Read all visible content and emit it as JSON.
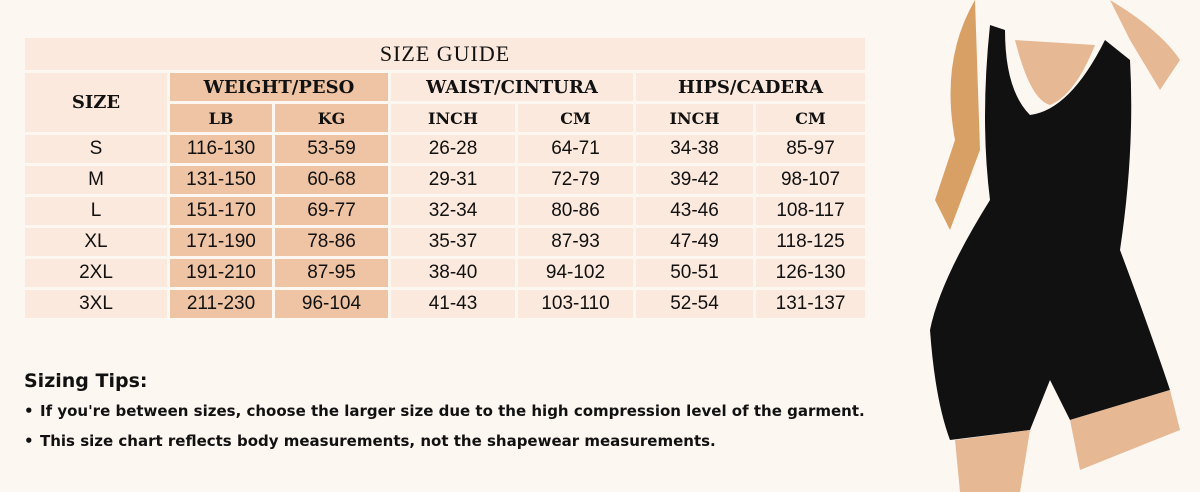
{
  "title": "SIZE GUIDE",
  "headers": {
    "size": "SIZE",
    "weight": "WEIGHT/PESO",
    "waist": "WAIST/CINTURA",
    "hips": "HIPS/CADERA",
    "lb": "LB",
    "kg": "KG",
    "inch": "INCH",
    "cm": "CM"
  },
  "rows": [
    [
      "S",
      "116-130",
      "53-59",
      "26-28",
      "64-71",
      "34-38",
      "85-97"
    ],
    [
      "M",
      "131-150",
      "60-68",
      "29-31",
      "72-79",
      "39-42",
      "98-107"
    ],
    [
      "L",
      "151-170",
      "69-77",
      "32-34",
      "80-86",
      "43-46",
      "108-117"
    ],
    [
      "XL",
      "171-190",
      "78-86",
      "35-37",
      "87-93",
      "47-49",
      "118-125"
    ],
    [
      "2XL",
      "191-210",
      "87-95",
      "38-40",
      "94-102",
      "50-51",
      "126-130"
    ],
    [
      "3XL",
      "211-230",
      "96-104",
      "41-43",
      "103-110",
      "52-54",
      "131-137"
    ]
  ],
  "tips": {
    "heading": "Sizing Tips:",
    "items": [
      "If you're between sizes, choose the larger size due to the high compression level of the garment.",
      "This size chart reflects body measurements, not the shapewear measurements."
    ]
  },
  "colors": {
    "cell": "#fbe9de",
    "weight_cell": "#efc4a4",
    "background": "#fdf7f2"
  }
}
